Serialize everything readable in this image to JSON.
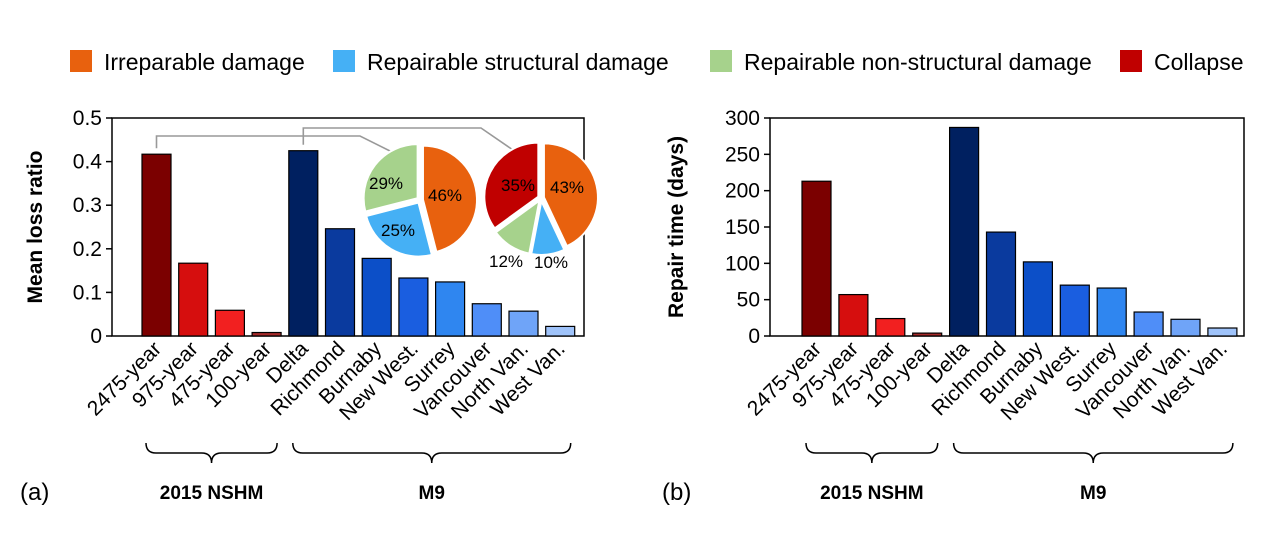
{
  "legend": [
    {
      "label": "Irreparable damage",
      "color": "#E8610E"
    },
    {
      "label": "Repairable structural damage",
      "color": "#45B0F5"
    },
    {
      "label": "Repairable non-structural damage",
      "color": "#A6D28C"
    },
    {
      "label": "Collapse",
      "color": "#C00000"
    }
  ],
  "chart_data": [
    {
      "type": "bar",
      "panel_label": "(a)",
      "ylabel": "Mean loss ratio",
      "ylim": [
        0,
        0.5
      ],
      "yticks": [
        0,
        0.1,
        0.2,
        0.3,
        0.4,
        0.5
      ],
      "ytick_labels": [
        "0",
        "0.1",
        "0.2",
        "0.3",
        "0.4",
        "0.5"
      ],
      "categories": [
        "2475-year",
        "975-year",
        "475-year",
        "100-year",
        "Delta",
        "Richmond",
        "Burnaby",
        "New West.",
        "Surrey",
        "Vancouver",
        "North Van.",
        "West Van."
      ],
      "values": [
        0.417,
        0.167,
        0.059,
        0.008,
        0.425,
        0.246,
        0.178,
        0.133,
        0.124,
        0.074,
        0.057,
        0.022
      ],
      "colors": [
        "#7B0000",
        "#D60E0E",
        "#F22020",
        "#A62A2A",
        "#002060",
        "#0A3A9E",
        "#0C4FC8",
        "#1A5EE0",
        "#2F86F0",
        "#4F8EF8",
        "#6FA4F8",
        "#9FC3FA"
      ],
      "groups": [
        {
          "label": "2015 NSHM",
          "from": 0,
          "to": 3
        },
        {
          "label": "M9",
          "from": 4,
          "to": 11
        }
      ],
      "insets": [
        {
          "ref_category": "2475-year",
          "slices": [
            {
              "name": "Irreparable damage",
              "value": 46,
              "label": "46%"
            },
            {
              "name": "Repairable structural damage",
              "value": 25,
              "label": "25%"
            },
            {
              "name": "Repairable non-structural damage",
              "value": 29,
              "label": "29%"
            }
          ]
        },
        {
          "ref_category": "Delta",
          "slices": [
            {
              "name": "Irreparable damage",
              "value": 43,
              "label": "43%"
            },
            {
              "name": "Repairable structural damage",
              "value": 10,
              "label": "10%"
            },
            {
              "name": "Repairable non-structural damage",
              "value": 12,
              "label": "12%"
            },
            {
              "name": "Collapse",
              "value": 35,
              "label": "35%"
            }
          ]
        }
      ]
    },
    {
      "type": "bar",
      "panel_label": "(b)",
      "ylabel": "Repair time (days)",
      "ylim": [
        0,
        300
      ],
      "yticks": [
        0,
        50,
        100,
        150,
        200,
        250,
        300
      ],
      "ytick_labels": [
        "0",
        "50",
        "100",
        "150",
        "200",
        "250",
        "300"
      ],
      "categories": [
        "2475-year",
        "975-year",
        "475-year",
        "100-year",
        "Delta",
        "Richmond",
        "Burnaby",
        "New West.",
        "Surrey",
        "Vancouver",
        "North Van.",
        "West Van."
      ],
      "values": [
        213,
        57,
        24,
        4,
        287,
        143,
        102,
        70,
        66,
        33,
        23,
        11
      ],
      "colors": [
        "#7B0000",
        "#D60E0E",
        "#F22020",
        "#A62A2A",
        "#002060",
        "#0A3A9E",
        "#0C4FC8",
        "#1A5EE0",
        "#2F86F0",
        "#4F8EF8",
        "#6FA4F8",
        "#9FC3FA"
      ],
      "groups": [
        {
          "label": "2015 NSHM",
          "from": 0,
          "to": 3
        },
        {
          "label": "M9",
          "from": 4,
          "to": 11
        }
      ]
    }
  ]
}
